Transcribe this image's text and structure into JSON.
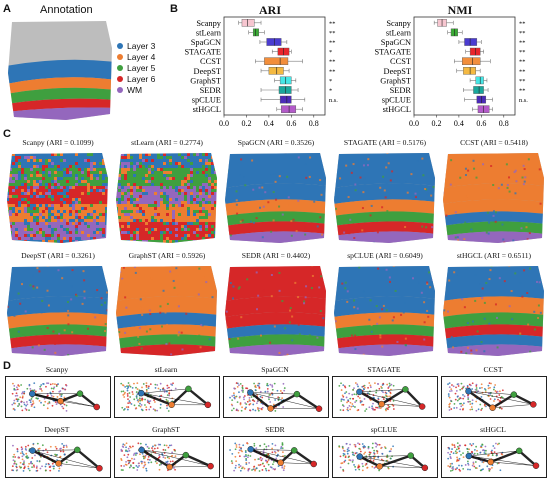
{
  "panels": {
    "a": "A",
    "b": "B",
    "c": "C",
    "d": "D"
  },
  "annotation": {
    "title": "Annotation",
    "legend": [
      {
        "label": "Layer 3",
        "color": "#2e75b6"
      },
      {
        "label": "Layer 4",
        "color": "#ed7d31"
      },
      {
        "label": "Layer 5",
        "color": "#3f9f3f"
      },
      {
        "label": "Layer 6",
        "color": "#d62728"
      },
      {
        "label": "WM",
        "color": "#9467bd"
      }
    ]
  },
  "boxplots": [
    {
      "title": "ARI",
      "xticks": [
        "0.0",
        "0.2",
        "0.4",
        "0.6",
        "0.8"
      ],
      "xlim": [
        0,
        0.9
      ],
      "methods": [
        {
          "name": "Scanpy",
          "q1": 0.16,
          "median": 0.21,
          "q3": 0.27,
          "min": 0.13,
          "max": 0.33,
          "color": "#f7c6d0",
          "sig": "**"
        },
        {
          "name": "stLearn",
          "q1": 0.26,
          "median": 0.28,
          "q3": 0.31,
          "min": 0.22,
          "max": 0.36,
          "color": "#3aaa35",
          "sig": "**"
        },
        {
          "name": "SpaGCN",
          "q1": 0.38,
          "median": 0.45,
          "q3": 0.51,
          "min": 0.32,
          "max": 0.56,
          "color": "#4a3bd0",
          "sig": "**"
        },
        {
          "name": "STAGATE",
          "q1": 0.48,
          "median": 0.53,
          "q3": 0.58,
          "min": 0.43,
          "max": 0.6,
          "color": "#e8262b",
          "sig": "*"
        },
        {
          "name": "CCST",
          "q1": 0.36,
          "median": 0.5,
          "q3": 0.57,
          "min": 0.28,
          "max": 0.7,
          "color": "#f28e3b",
          "sig": "**"
        },
        {
          "name": "DeepST",
          "q1": 0.4,
          "median": 0.47,
          "q3": 0.53,
          "min": 0.33,
          "max": 0.58,
          "color": "#f4b942",
          "sig": "**"
        },
        {
          "name": "GraphST",
          "q1": 0.5,
          "median": 0.55,
          "q3": 0.6,
          "min": 0.45,
          "max": 0.64,
          "color": "#46e6e6",
          "sig": "*"
        },
        {
          "name": "SEDR",
          "q1": 0.49,
          "median": 0.55,
          "q3": 0.6,
          "min": 0.33,
          "max": 0.66,
          "color": "#1aa79c",
          "sig": "*"
        },
        {
          "name": "spCLUE",
          "q1": 0.5,
          "median": 0.56,
          "q3": 0.6,
          "min": 0.33,
          "max": 0.72,
          "color": "#4b2bb8",
          "sig": "n.s."
        },
        {
          "name": "stHGCL",
          "q1": 0.51,
          "median": 0.58,
          "q3": 0.64,
          "min": 0.47,
          "max": 0.7,
          "color": "#b35ac9",
          "sig": ""
        }
      ]
    },
    {
      "title": "NMI",
      "xticks": [
        "0.0",
        "0.2",
        "0.4",
        "0.6",
        "0.8"
      ],
      "xlim": [
        0,
        0.9
      ],
      "methods": [
        {
          "name": "Scanpy",
          "q1": 0.21,
          "median": 0.25,
          "q3": 0.29,
          "min": 0.18,
          "max": 0.35,
          "color": "#f7c6d0",
          "sig": "**"
        },
        {
          "name": "stLearn",
          "q1": 0.33,
          "median": 0.36,
          "q3": 0.39,
          "min": 0.3,
          "max": 0.43,
          "color": "#3aaa35",
          "sig": "**"
        },
        {
          "name": "SpaGCN",
          "q1": 0.45,
          "median": 0.5,
          "q3": 0.56,
          "min": 0.4,
          "max": 0.6,
          "color": "#4a3bd0",
          "sig": "**"
        },
        {
          "name": "STAGATE",
          "q1": 0.5,
          "median": 0.55,
          "q3": 0.59,
          "min": 0.46,
          "max": 0.62,
          "color": "#e8262b",
          "sig": "**"
        },
        {
          "name": "CCST",
          "q1": 0.43,
          "median": 0.52,
          "q3": 0.59,
          "min": 0.36,
          "max": 0.68,
          "color": "#f28e3b",
          "sig": "**"
        },
        {
          "name": "DeepST",
          "q1": 0.44,
          "median": 0.5,
          "q3": 0.55,
          "min": 0.38,
          "max": 0.59,
          "color": "#f4b942",
          "sig": "**"
        },
        {
          "name": "GraphST",
          "q1": 0.55,
          "median": 0.59,
          "q3": 0.62,
          "min": 0.5,
          "max": 0.65,
          "color": "#46e6e6",
          "sig": "**"
        },
        {
          "name": "SEDR",
          "q1": 0.53,
          "median": 0.58,
          "q3": 0.62,
          "min": 0.44,
          "max": 0.66,
          "color": "#1aa79c",
          "sig": "**"
        },
        {
          "name": "spCLUE",
          "q1": 0.56,
          "median": 0.6,
          "q3": 0.64,
          "min": 0.45,
          "max": 0.7,
          "color": "#4b2bb8",
          "sig": "n.s."
        },
        {
          "name": "stHGCL",
          "q1": 0.57,
          "median": 0.62,
          "q3": 0.67,
          "min": 0.52,
          "max": 0.7,
          "color": "#b35ac9",
          "sig": ""
        }
      ]
    }
  ],
  "tissues": [
    {
      "title": "Scanpy (ARI = 0.1099)",
      "style": "noisy"
    },
    {
      "title": "stLearn (ARI = 0.2774)",
      "style": "noisy2"
    },
    {
      "title": "SpaGCN (ARI = 0.3526)",
      "style": "layered"
    },
    {
      "title": "STAGATE (ARI = 0.5176)",
      "style": "layered"
    },
    {
      "title": "CCST (ARI = 0.5418)",
      "style": "orange"
    },
    {
      "title": "DeepST (ARI = 0.3261)",
      "style": "layered"
    },
    {
      "title": "GraphST (ARI = 0.5926)",
      "style": "orange2"
    },
    {
      "title": "SEDR (ARI = 0.4402)",
      "style": "red"
    },
    {
      "title": "spCLUE (ARI = 0.6049)",
      "style": "layered"
    },
    {
      "title": "stHGCL (ARI = 0.6511)",
      "style": "layered2"
    }
  ],
  "trajectories": [
    {
      "title": "Scanpy"
    },
    {
      "title": "stLearn"
    },
    {
      "title": "SpaGCN"
    },
    {
      "title": "STAGATE"
    },
    {
      "title": "CCST"
    },
    {
      "title": "DeepST"
    },
    {
      "title": "GraphST"
    },
    {
      "title": "SEDR"
    },
    {
      "title": "spCLUE"
    },
    {
      "title": "stHGCL"
    }
  ]
}
